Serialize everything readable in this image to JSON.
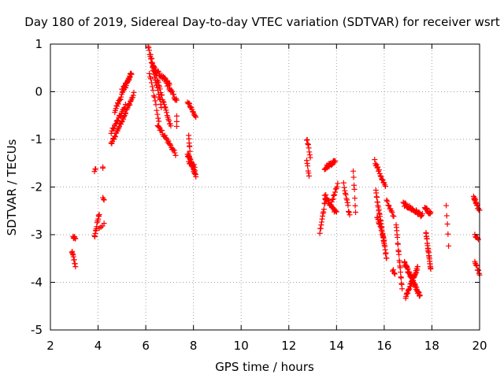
{
  "chart_data": {
    "type": "scatter",
    "title": "Day 180 of 2019, Sidereal Day-to-day VTEC variation (SDTVAR) for receiver wsrt",
    "xlabel": "GPS time / hours",
    "ylabel": "SDTVAR / TECUs",
    "xlim": [
      2,
      20
    ],
    "ylim": [
      -5,
      1
    ],
    "xticks": [
      2,
      4,
      6,
      8,
      10,
      12,
      14,
      16,
      18,
      20
    ],
    "yticks": [
      -5,
      -4,
      -3,
      -2,
      -1,
      0,
      1
    ],
    "grid": true,
    "marker": "plus",
    "color": "#ff0000",
    "segments": [
      {
        "from": [
          2.95,
          -3.05
        ],
        "to": [
          3.05,
          -3.1
        ],
        "n": 6
      },
      {
        "from": [
          2.9,
          -3.35
        ],
        "to": [
          3.05,
          -3.65
        ],
        "n": 10
      },
      {
        "from": [
          3.85,
          -1.65
        ],
        "to": [
          3.9,
          -1.65
        ],
        "n": 3
      },
      {
        "from": [
          3.85,
          -3.05
        ],
        "to": [
          4.05,
          -2.55
        ],
        "n": 14
      },
      {
        "from": [
          4.05,
          -2.85
        ],
        "to": [
          4.25,
          -2.8
        ],
        "n": 4
      },
      {
        "from": [
          4.2,
          -1.6
        ],
        "to": [
          4.2,
          -1.6
        ],
        "n": 2
      },
      {
        "from": [
          4.2,
          -2.2
        ],
        "to": [
          4.25,
          -2.3
        ],
        "n": 3
      },
      {
        "from": [
          4.55,
          -1.1
        ],
        "to": [
          5.5,
          -0.05
        ],
        "n": 40
      },
      {
        "from": [
          4.55,
          -0.85
        ],
        "to": [
          5.15,
          -0.3
        ],
        "n": 22
      },
      {
        "from": [
          4.7,
          -0.4
        ],
        "to": [
          5.4,
          0.4
        ],
        "n": 30
      },
      {
        "from": [
          5.0,
          0.05
        ],
        "to": [
          5.4,
          0.35
        ],
        "n": 14
      },
      {
        "from": [
          6.1,
          0.95
        ],
        "to": [
          6.65,
          -0.3
        ],
        "n": 25
      },
      {
        "from": [
          6.2,
          0.75
        ],
        "to": [
          7.05,
          -0.75
        ],
        "n": 35
      },
      {
        "from": [
          6.3,
          0.5
        ],
        "to": [
          7.0,
          0.15
        ],
        "n": 25
      },
      {
        "from": [
          6.85,
          0.2
        ],
        "to": [
          7.3,
          -0.2
        ],
        "n": 18
      },
      {
        "from": [
          6.15,
          0.4
        ],
        "to": [
          6.55,
          -0.6
        ],
        "n": 14
      },
      {
        "from": [
          6.5,
          -0.7
        ],
        "to": [
          7.25,
          -1.3
        ],
        "n": 26
      },
      {
        "from": [
          7.3,
          -0.55
        ],
        "to": [
          7.3,
          -0.75
        ],
        "n": 3
      },
      {
        "from": [
          7.75,
          -0.2
        ],
        "to": [
          8.1,
          -0.55
        ],
        "n": 14
      },
      {
        "from": [
          7.8,
          -0.9
        ],
        "to": [
          7.85,
          -1.25
        ],
        "n": 6
      },
      {
        "from": [
          7.75,
          -1.3
        ],
        "to": [
          8.1,
          -1.75
        ],
        "n": 28
      },
      {
        "from": [
          7.8,
          -1.5
        ],
        "to": [
          8.05,
          -1.55
        ],
        "n": 10
      },
      {
        "from": [
          12.75,
          -0.98
        ],
        "to": [
          12.9,
          -1.35
        ],
        "n": 8
      },
      {
        "from": [
          12.75,
          -1.45
        ],
        "to": [
          12.85,
          -1.75
        ],
        "n": 6
      },
      {
        "from": [
          13.5,
          -1.6
        ],
        "to": [
          13.95,
          -1.45
        ],
        "n": 20
      },
      {
        "from": [
          13.3,
          -2.95
        ],
        "to": [
          13.55,
          -2.2
        ],
        "n": 14
      },
      {
        "from": [
          13.5,
          -2.2
        ],
        "to": [
          14.0,
          -2.55
        ],
        "n": 22
      },
      {
        "from": [
          13.8,
          -2.3
        ],
        "to": [
          14.05,
          -1.95
        ],
        "n": 10
      },
      {
        "from": [
          14.3,
          -1.95
        ],
        "to": [
          14.55,
          -2.6
        ],
        "n": 12
      },
      {
        "from": [
          14.7,
          -1.65
        ],
        "to": [
          14.8,
          -2.5
        ],
        "n": 7
      },
      {
        "from": [
          15.6,
          -1.45
        ],
        "to": [
          16.05,
          -2.0
        ],
        "n": 18
      },
      {
        "from": [
          15.65,
          -2.1
        ],
        "to": [
          16.1,
          -3.5
        ],
        "n": 32
      },
      {
        "from": [
          15.7,
          -2.6
        ],
        "to": [
          16.0,
          -3.1
        ],
        "n": 16
      },
      {
        "from": [
          16.1,
          -2.3
        ],
        "to": [
          16.4,
          -2.6
        ],
        "n": 10
      },
      {
        "from": [
          16.35,
          -3.75
        ],
        "to": [
          16.45,
          -3.8
        ],
        "n": 4
      },
      {
        "from": [
          16.5,
          -2.8
        ],
        "to": [
          16.75,
          -4.15
        ],
        "n": 20
      },
      {
        "from": [
          16.8,
          -2.35
        ],
        "to": [
          17.6,
          -2.6
        ],
        "n": 35
      },
      {
        "from": [
          16.85,
          -3.6
        ],
        "to": [
          17.5,
          -4.3
        ],
        "n": 45
      },
      {
        "from": [
          16.9,
          -4.3
        ],
        "to": [
          17.4,
          -3.7
        ],
        "n": 30
      },
      {
        "from": [
          17.7,
          -2.45
        ],
        "to": [
          17.95,
          -2.55
        ],
        "n": 14
      },
      {
        "from": [
          17.75,
          -2.95
        ],
        "to": [
          17.95,
          -3.75
        ],
        "n": 24
      },
      {
        "from": [
          18.6,
          -2.35
        ],
        "to": [
          18.7,
          -3.2
        ],
        "n": 5
      },
      {
        "from": [
          19.75,
          -2.2
        ],
        "to": [
          20.0,
          -2.5
        ],
        "n": 18
      },
      {
        "from": [
          19.8,
          -3.0
        ],
        "to": [
          19.95,
          -3.1
        ],
        "n": 6
      },
      {
        "from": [
          19.8,
          -3.55
        ],
        "to": [
          20.0,
          -3.85
        ],
        "n": 10
      }
    ]
  }
}
